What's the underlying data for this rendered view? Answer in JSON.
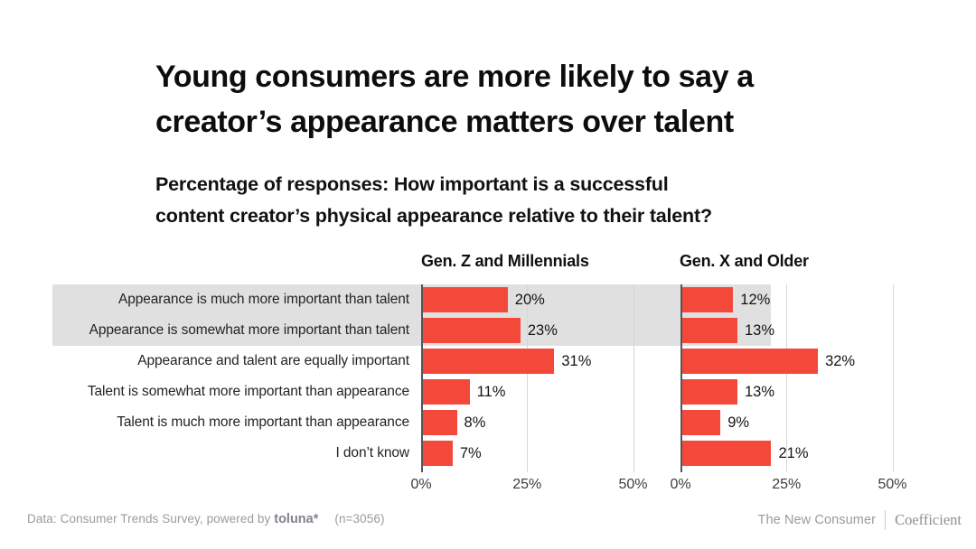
{
  "title": "Young consumers are more likely to say a\ncreator’s appearance matters over talent",
  "subtitle": "Percentage of responses: How important is a successful\ncontent creator’s physical appearance relative to their talent?",
  "chart_data": {
    "type": "bar",
    "orientation": "horizontal",
    "categories": [
      "Appearance is much more important than talent",
      "Appearance is somewhat more important than talent",
      "Appearance and talent are equally important",
      "Talent is somewhat more important than appearance",
      "Talent is much more important than appearance",
      "I don’t know"
    ],
    "series": [
      {
        "name": "Gen. Z and Millennials",
        "values": [
          20,
          23,
          31,
          11,
          8,
          7
        ]
      },
      {
        "name": "Gen. X and Older",
        "values": [
          12,
          13,
          32,
          13,
          9,
          21
        ]
      }
    ],
    "value_suffix": "%",
    "xlim": [
      0,
      50
    ],
    "x_ticks": [
      0,
      25,
      50
    ],
    "x_tick_labels": [
      "0%",
      "25%",
      "50%"
    ],
    "grid": "vertical-gridlines-at-ticks",
    "legend_position": "column-headers-above-each-panel",
    "highlighted_rows": [
      0,
      1
    ],
    "colors": {
      "bar": "#f4483b",
      "row_highlight": "#e0e0e0",
      "axis": "#54555a",
      "gridline": "#d6d6d6"
    }
  },
  "footer": {
    "source_prefix": "Data: Consumer Trends Survey, powered by ",
    "source_logo": "toluna*",
    "sample": "(n=3056)",
    "brand_left": "The New Consumer",
    "brand_right": "Coefficient"
  }
}
